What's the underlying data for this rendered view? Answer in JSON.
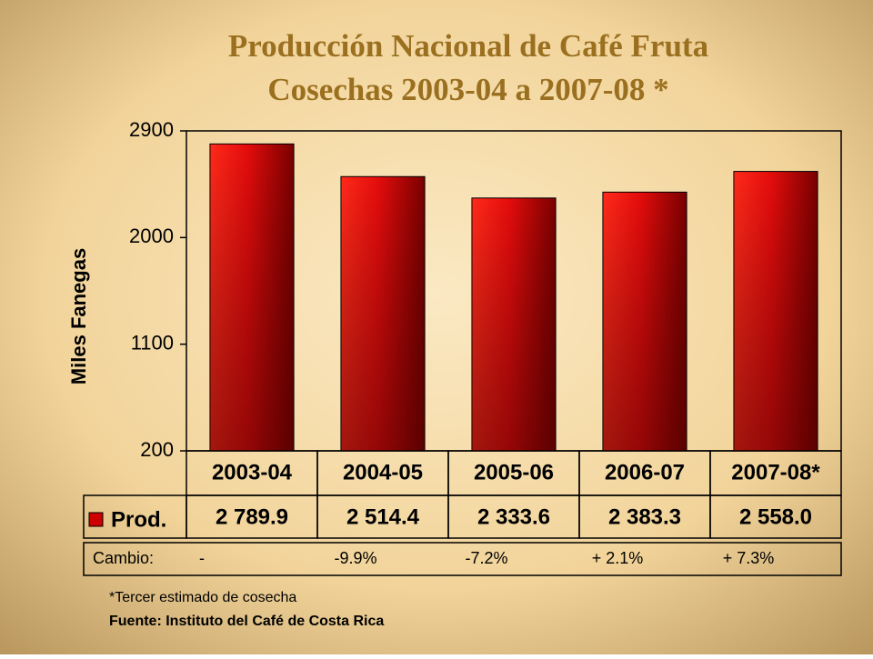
{
  "chart_data": {
    "type": "bar",
    "title": [
      "Producción Nacional de Café Fruta",
      "Cosechas 2003-04 a 2007-08 *"
    ],
    "y_label": "Miles Fanegas",
    "categories": [
      "2003-04",
      "2004-05",
      "2005-06",
      "2006-07",
      "2007-08*"
    ],
    "series": [
      {
        "name": "Prod.",
        "color": "#cc0000",
        "values": [
          2789.9,
          2514.4,
          2333.6,
          2383.3,
          2558.0
        ],
        "value_labels": [
          "2 789.9",
          "2 514.4",
          "2 333.6",
          "2 383.3",
          "2 558.0"
        ]
      }
    ],
    "ylim": [
      200,
      2900
    ],
    "yticks": [
      200,
      1100,
      2000,
      2900
    ],
    "grid": false,
    "change": {
      "label": "Cambio:",
      "values": [
        "-",
        "-9.9%",
        "-7.2%",
        "+ 2.1%",
        "+ 7.3%"
      ]
    },
    "notes": [
      "*Tercer estimado de cosecha",
      "Fuente: Instituto del Café de Costa Rica"
    ]
  }
}
